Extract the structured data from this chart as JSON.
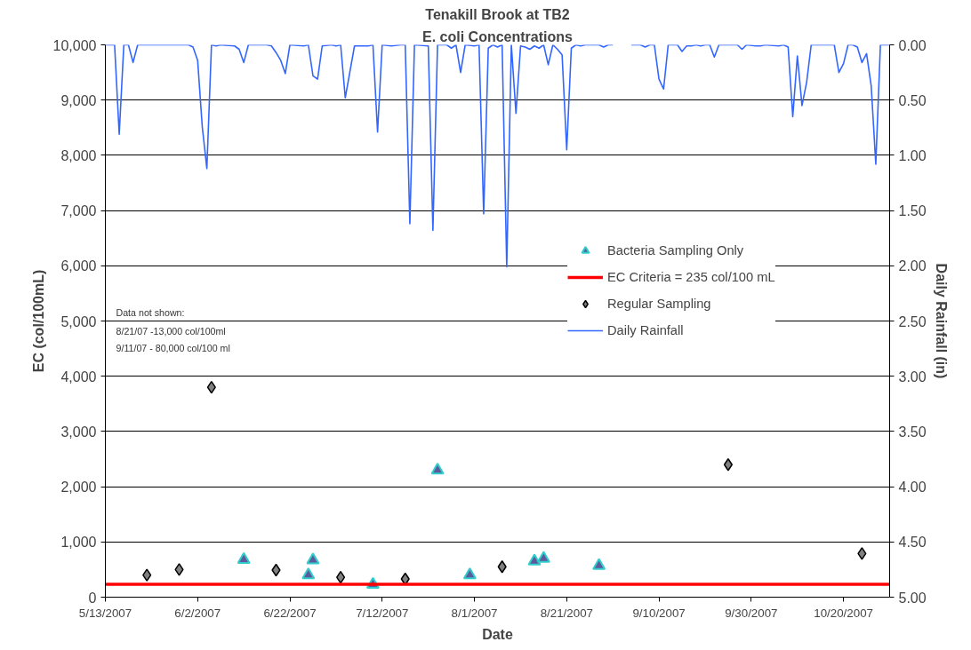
{
  "chart_data": {
    "type": "scatter",
    "title": "Tenakill Brook at TB2",
    "subtitle": "E. coli Concentrations",
    "xlabel": "Date",
    "ylabel": "EC (col/100mL)",
    "y2label": "Daily Rainfall (in)",
    "xlim": [
      "2007-05-13",
      "2007-10-30"
    ],
    "xticks": [
      {
        "value": "2007-05-13",
        "label": "5/13/2007"
      },
      {
        "value": "2007-06-02",
        "label": "6/2/2007"
      },
      {
        "value": "2007-06-22",
        "label": "6/22/2007"
      },
      {
        "value": "2007-07-12",
        "label": "7/12/2007"
      },
      {
        "value": "2007-08-01",
        "label": "8/1/2007"
      },
      {
        "value": "2007-08-21",
        "label": "8/21/2007"
      },
      {
        "value": "2007-09-10",
        "label": "9/10/2007"
      },
      {
        "value": "2007-09-30",
        "label": "9/30/2007"
      },
      {
        "value": "2007-10-20",
        "label": "10/20/2007"
      }
    ],
    "ylim": [
      0,
      10000
    ],
    "yticks": [
      0,
      {
        "value": 1000,
        "label": "1,000"
      },
      {
        "value": 2000,
        "label": "2,000"
      },
      {
        "value": 3000,
        "label": "3,000"
      },
      {
        "value": 4000,
        "label": "4,000"
      },
      {
        "value": 5000,
        "label": "5,000"
      },
      {
        "value": 6000,
        "label": "6,000"
      },
      {
        "value": 7000,
        "label": "7,000"
      },
      {
        "value": 8000,
        "label": "8,000"
      },
      {
        "value": 9000,
        "label": "9,000"
      },
      {
        "value": 10000,
        "label": "10,000"
      }
    ],
    "y2lim": [
      5,
      0
    ],
    "y2ticks": [
      {
        "value": 0,
        "label": "0.00"
      },
      {
        "value": 0.5,
        "label": "0.50"
      },
      {
        "value": 1,
        "label": "1.00"
      },
      {
        "value": 1.5,
        "label": "1.50"
      },
      {
        "value": 2,
        "label": "2.00"
      },
      {
        "value": 2.5,
        "label": "2.50"
      },
      {
        "value": 3,
        "label": "3.00"
      },
      {
        "value": 3.5,
        "label": "3.50"
      },
      {
        "value": 4,
        "label": "4.00"
      },
      {
        "value": 4.5,
        "label": "4.50"
      },
      {
        "value": 5,
        "label": "5.00"
      }
    ],
    "grid": "y",
    "legend": "right",
    "ref_lines": [
      {
        "axis": "y",
        "value": 235,
        "label": "EC Criteria = 235 col/100 mL",
        "color": "#ff0000",
        "line_style": "solid"
      }
    ],
    "annotations": [
      "Data not shown:",
      "8/21/07 -13,000 col/100ml",
      "9/11/07 - 80,000 col/100 ml"
    ],
    "series": [
      {
        "name": "Bacteria Sampling Only",
        "marker": "triangle",
        "color": "#5b5b9b",
        "x": [
          "2007-06-12",
          "2007-06-26",
          "2007-06-27",
          "2007-07-10",
          "2007-07-24",
          "2007-07-31",
          "2007-08-14",
          "2007-08-16",
          "2007-08-28"
        ],
        "values": [
          680,
          400,
          670,
          230,
          2300,
          400,
          650,
          700,
          570
        ]
      },
      {
        "name": "Regular Sampling",
        "marker": "diamond",
        "color": "#808080",
        "x": [
          "2007-05-22",
          "2007-05-29",
          "2007-06-05",
          "2007-06-19",
          "2007-07-03",
          "2007-07-17",
          "2007-08-07",
          "2007-09-25",
          "2007-10-24"
        ],
        "values": [
          400,
          500,
          3800,
          490,
          360,
          330,
          550,
          2400,
          790
        ]
      },
      {
        "name": "Daily Rainfall",
        "type": "line",
        "axis": "y2",
        "marker": "none",
        "line_style": "solid",
        "color": "#3366ff",
        "x": [
          "2007-05-13",
          "2007-05-15",
          "2007-05-16",
          "2007-05-17",
          "2007-05-18",
          "2007-05-19",
          "2007-05-20",
          "2007-05-31",
          "2007-06-01",
          "2007-06-02",
          "2007-06-03",
          "2007-06-04",
          "2007-06-05",
          "2007-06-06",
          "2007-06-07",
          "2007-06-10",
          "2007-06-11",
          "2007-06-12",
          "2007-06-13",
          "2007-06-17",
          "2007-06-18",
          "2007-06-19",
          "2007-06-20",
          "2007-06-21",
          "2007-06-22",
          "2007-06-25",
          "2007-06-26",
          "2007-06-27",
          "2007-06-28",
          "2007-06-29",
          "2007-07-01",
          "2007-07-02",
          "2007-07-03",
          "2007-07-04",
          "2007-07-06",
          "2007-07-08",
          "2007-07-09",
          "2007-07-10",
          "2007-07-11",
          "2007-07-12",
          "2007-07-14",
          "2007-07-16",
          "2007-07-17",
          "2007-07-18",
          "2007-07-19",
          "2007-07-22",
          "2007-07-23",
          "2007-07-24",
          "2007-07-26",
          "2007-07-27",
          "2007-07-28",
          "2007-07-29",
          "2007-07-30",
          "2007-08-01",
          "2007-08-02",
          "2007-08-03",
          "2007-08-04",
          "2007-08-05",
          "2007-08-06",
          "2007-08-07",
          "2007-08-08",
          "2007-08-09",
          "2007-08-10",
          "2007-08-11",
          "2007-08-12",
          "2007-08-13",
          "2007-08-14",
          "2007-08-15",
          "2007-08-16",
          "2007-08-17",
          "2007-08-18",
          "2007-08-19",
          "2007-08-20",
          "2007-08-21",
          "2007-08-22",
          "2007-08-23",
          "2007-08-24",
          "2007-08-25",
          "2007-08-28",
          "2007-08-29",
          "2007-08-30",
          "2007-08-31",
          "2007-09-01",
          "2007-09-04",
          "2007-09-06",
          "2007-09-07",
          "2007-09-08",
          "2007-09-09",
          "2007-09-10",
          "2007-09-11",
          "2007-09-12",
          "2007-09-14",
          "2007-09-15",
          "2007-09-16",
          "2007-09-17",
          "2007-09-18",
          "2007-09-19",
          "2007-09-20",
          "2007-09-21",
          "2007-09-22",
          "2007-09-23",
          "2007-09-27",
          "2007-09-28",
          "2007-09-29",
          "2007-10-01",
          "2007-10-02",
          "2007-10-03",
          "2007-10-06",
          "2007-10-07",
          "2007-10-08",
          "2007-10-09",
          "2007-10-10",
          "2007-10-11",
          "2007-10-12",
          "2007-10-13",
          "2007-10-18",
          "2007-10-19",
          "2007-10-20",
          "2007-10-21",
          "2007-10-22",
          "2007-10-23",
          "2007-10-24",
          "2007-10-25",
          "2007-10-26",
          "2007-10-27",
          "2007-10-28",
          "2007-10-30"
        ],
        "values": [
          0,
          0,
          0.81,
          0,
          0,
          0.16,
          0,
          0,
          0.02,
          0.14,
          0.74,
          1.12,
          0,
          0.01,
          0,
          0.01,
          0.04,
          0.16,
          0,
          0,
          0.01,
          0.07,
          0.14,
          0.26,
          0,
          0.01,
          0,
          0.28,
          0.31,
          0.01,
          0,
          0.01,
          0,
          0.48,
          0.01,
          0.01,
          0.01,
          0,
          0.79,
          0,
          0.01,
          0,
          0,
          1.62,
          0,
          0.01,
          1.68,
          0,
          0,
          0.03,
          0,
          0.25,
          0,
          0.01,
          0,
          1.53,
          0.03,
          0,
          0.02,
          0,
          2.01,
          0,
          0.62,
          0.01,
          0.02,
          0.04,
          0.01,
          0.03,
          0,
          0.18,
          0,
          0.04,
          0.09,
          0.95,
          0.03,
          0,
          0.01,
          0,
          0,
          0.02,
          0,
          0,
          null,
          0,
          0,
          0.02,
          0,
          0,
          0.31,
          0.4,
          0,
          0,
          0.06,
          0.01,
          0.01,
          0,
          0.01,
          0,
          0,
          0.11,
          0,
          0,
          0.04,
          0,
          0.01,
          0.01,
          0,
          0.01,
          0,
          0.02,
          0.65,
          0.1,
          0.55,
          0.34,
          0,
          0,
          0.25,
          0.17,
          0,
          0,
          0.02,
          0.16,
          0.08,
          0.37,
          1.08,
          0,
          0
        ]
      }
    ]
  }
}
